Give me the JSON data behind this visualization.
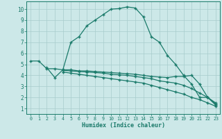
{
  "xlabel": "Humidex (Indice chaleur)",
  "bg_color": "#cce8e8",
  "grid_color": "#a8cccc",
  "line_color": "#1a7a6a",
  "xlim": [
    -0.5,
    23.5
  ],
  "ylim": [
    0.5,
    10.7
  ],
  "xticks": [
    0,
    1,
    2,
    3,
    4,
    5,
    6,
    7,
    8,
    9,
    10,
    11,
    12,
    13,
    14,
    15,
    16,
    17,
    18,
    19,
    20,
    21,
    22,
    23
  ],
  "yticks": [
    1,
    2,
    3,
    4,
    5,
    6,
    7,
    8,
    9,
    10
  ],
  "curve1_x": [
    0,
    1,
    2,
    3,
    4,
    5,
    6,
    7,
    8,
    9,
    10,
    11,
    12,
    13,
    14,
    15,
    16,
    17,
    18,
    19,
    20,
    21,
    22,
    23
  ],
  "curve1_y": [
    5.3,
    5.3,
    4.6,
    4.6,
    4.5,
    7.0,
    7.5,
    8.5,
    9.0,
    9.5,
    10.0,
    10.05,
    10.2,
    10.1,
    9.3,
    7.5,
    7.0,
    5.8,
    5.0,
    4.0,
    3.2,
    2.0,
    2.0,
    1.3
  ],
  "curve2_x": [
    2,
    3,
    4,
    5,
    6,
    7,
    8,
    9,
    10,
    11,
    12,
    13,
    14,
    15,
    16,
    17,
    18,
    19,
    20,
    21,
    22,
    23
  ],
  "curve2_y": [
    4.7,
    3.8,
    4.5,
    4.5,
    4.4,
    4.4,
    4.35,
    4.3,
    4.25,
    4.2,
    4.15,
    4.1,
    4.0,
    3.9,
    3.85,
    3.8,
    3.9,
    3.9,
    4.0,
    3.2,
    2.0,
    1.4
  ],
  "curve3_x": [
    4,
    5,
    6,
    7,
    8,
    9,
    10,
    11,
    12,
    13,
    14,
    15,
    16,
    17,
    18,
    19,
    20,
    21,
    22,
    23
  ],
  "curve3_y": [
    4.45,
    4.4,
    4.35,
    4.3,
    4.25,
    4.2,
    4.1,
    4.05,
    4.0,
    3.9,
    3.8,
    3.7,
    3.5,
    3.4,
    3.3,
    3.1,
    2.8,
    2.4,
    2.0,
    1.5
  ],
  "curve4_x": [
    4,
    5,
    6,
    7,
    8,
    9,
    10,
    11,
    12,
    13,
    14,
    15,
    16,
    17,
    18,
    19,
    20,
    21,
    22,
    23
  ],
  "curve4_y": [
    4.3,
    4.2,
    4.1,
    4.0,
    3.9,
    3.8,
    3.7,
    3.6,
    3.5,
    3.4,
    3.3,
    3.1,
    2.9,
    2.7,
    2.5,
    2.3,
    2.0,
    1.8,
    1.5,
    1.2
  ]
}
